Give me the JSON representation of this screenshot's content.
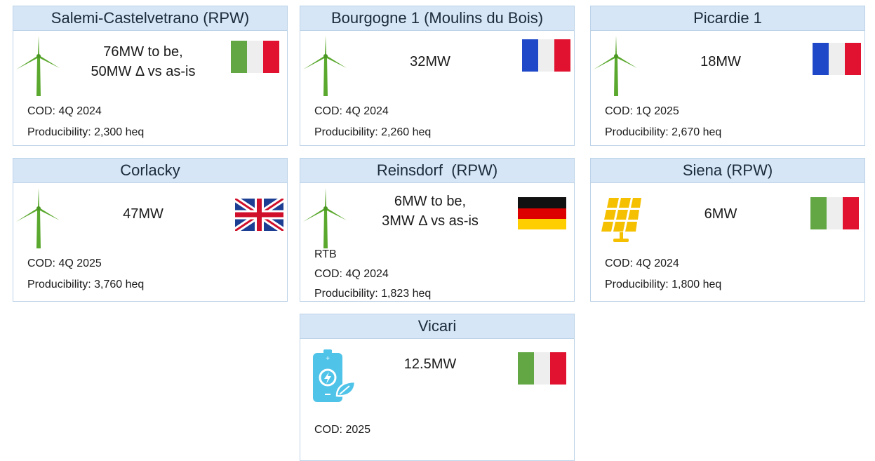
{
  "cards": [
    {
      "title": "Salemi-Castelvetrano (RPW)",
      "capacity": [
        "76MW to be,",
        "50MW Δ vs as-is"
      ],
      "cod": "COD: 4Q 2024",
      "producibility": "Producibility: 2,300 heq"
    },
    {
      "title": "Bourgogne 1 (Moulins du Bois)",
      "capacity": [
        "32MW"
      ],
      "cod": "COD: 4Q 2024",
      "producibility": "Producibility: 2,260 heq"
    },
    {
      "title": "Picardie 1",
      "capacity": [
        "18MW"
      ],
      "cod": "COD: 1Q 2025",
      "producibility": "Producibility: 2,670 heq"
    },
    {
      "title": "Corlacky",
      "capacity": [
        "47MW"
      ],
      "cod": "COD: 4Q 2025",
      "producibility": "Producibility: 3,760 heq"
    },
    {
      "title": "Reinsdorf  (RPW)",
      "capacity": [
        "6MW to be,",
        "3MW Δ vs as-is"
      ],
      "rtb": "RTB",
      "cod": "COD: 4Q 2024",
      "producibility": "Producibility: 1,823 heq"
    },
    {
      "title": "Siena (RPW)",
      "capacity": [
        "6MW"
      ],
      "cod": "COD: 4Q 2024",
      "producibility": "Producibility: 1,800 heq"
    },
    {
      "title": "Vicari",
      "capacity": [
        "12.5MW"
      ],
      "cod": "COD: 2025"
    }
  ]
}
